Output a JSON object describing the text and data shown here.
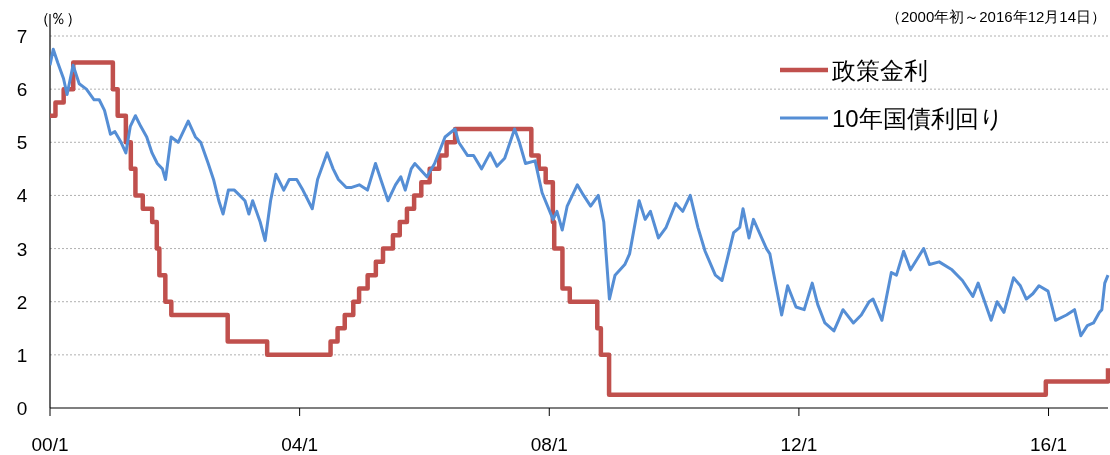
{
  "chart_data": {
    "type": "line",
    "ylabel": "（％）",
    "subtitle": "（2000年初～2016年12月14日）",
    "xlim": [
      "2000-01-01",
      "2016-12-14"
    ],
    "xticks": [
      {
        "value": "2000-01-01",
        "label": "00/1"
      },
      {
        "value": "2004-01-01",
        "label": "04/1"
      },
      {
        "value": "2008-01-01",
        "label": "08/1"
      },
      {
        "value": "2012-01-01",
        "label": "12/1"
      },
      {
        "value": "2016-01-01",
        "label": "16/1"
      }
    ],
    "ylim": [
      0,
      7
    ],
    "yticks": [
      0,
      1,
      2,
      3,
      4,
      5,
      6,
      7
    ],
    "grid": "y",
    "legend": "top right",
    "marker": "none",
    "line_style": "solid",
    "series": [
      {
        "name": "政策金利",
        "type": "step",
        "color": "#c0504d",
        "x": [
          "2000-01-01",
          "2000-02-02",
          "2000-03-21",
          "2000-05-16",
          "2001-01-03",
          "2001-01-31",
          "2001-03-20",
          "2001-04-18",
          "2001-05-15",
          "2001-06-27",
          "2001-08-21",
          "2001-09-17",
          "2001-10-02",
          "2001-11-06",
          "2001-12-11",
          "2002-11-06",
          "2003-06-25",
          "2004-06-30",
          "2004-08-10",
          "2004-09-21",
          "2004-11-10",
          "2004-12-14",
          "2005-02-02",
          "2005-03-22",
          "2005-05-03",
          "2005-06-30",
          "2005-08-09",
          "2005-09-20",
          "2005-11-01",
          "2005-12-13",
          "2006-01-31",
          "2006-03-28",
          "2006-05-10",
          "2006-06-29",
          "2007-09-18",
          "2007-10-31",
          "2007-12-11",
          "2008-01-22",
          "2008-01-30",
          "2008-03-18",
          "2008-04-30",
          "2008-10-08",
          "2008-10-29",
          "2008-12-16",
          "2015-12-16",
          "2016-12-14"
        ],
        "values": [
          5.5,
          5.75,
          6.0,
          6.5,
          6.0,
          5.5,
          5.0,
          4.5,
          4.0,
          3.75,
          3.5,
          3.0,
          2.5,
          2.0,
          1.75,
          1.25,
          1.0,
          1.25,
          1.5,
          1.75,
          2.0,
          2.25,
          2.5,
          2.75,
          3.0,
          3.25,
          3.5,
          3.75,
          4.0,
          4.25,
          4.5,
          4.75,
          5.0,
          5.25,
          4.75,
          4.5,
          4.25,
          3.5,
          3.0,
          2.25,
          2.0,
          1.5,
          1.0,
          0.25,
          0.5,
          0.75
        ]
      },
      {
        "name": "10年国債利回り",
        "color": "#558ed5",
        "x": [
          "2000-01-01",
          "2000-01-20",
          "2000-02-15",
          "2000-03-20",
          "2000-04-10",
          "2000-05-15",
          "2000-06-20",
          "2000-08-01",
          "2000-09-15",
          "2000-10-15",
          "2000-11-15",
          "2000-12-20",
          "2001-01-15",
          "2001-02-20",
          "2001-03-20",
          "2001-04-15",
          "2001-05-15",
          "2001-06-15",
          "2001-07-20",
          "2001-08-20",
          "2001-09-20",
          "2001-10-20",
          "2001-11-07",
          "2001-12-10",
          "2002-01-20",
          "2002-03-20",
          "2002-05-01",
          "2002-06-01",
          "2002-07-15",
          "2002-08-15",
          "2002-09-15",
          "2002-10-10",
          "2002-11-10",
          "2002-12-15",
          "2003-01-15",
          "2003-02-15",
          "2003-03-10",
          "2003-04-01",
          "2003-05-15",
          "2003-06-13",
          "2003-07-15",
          "2003-08-15",
          "2003-09-30",
          "2003-11-01",
          "2003-12-15",
          "2004-01-20",
          "2004-03-15",
          "2004-04-15",
          "2004-06-10",
          "2004-07-15",
          "2004-08-15",
          "2004-09-30",
          "2004-11-01",
          "2004-12-15",
          "2005-02-01",
          "2005-03-20",
          "2005-04-20",
          "2005-06-01",
          "2005-07-15",
          "2005-08-15",
          "2005-09-10",
          "2005-10-15",
          "2005-11-05",
          "2006-01-15",
          "2006-03-01",
          "2006-05-01",
          "2006-06-28",
          "2006-07-20",
          "2006-09-10",
          "2006-10-15",
          "2006-12-01",
          "2007-01-20",
          "2007-03-01",
          "2007-04-15",
          "2007-06-12",
          "2007-07-10",
          "2007-08-15",
          "2007-10-10",
          "2007-11-20",
          "2008-01-23",
          "2008-02-15",
          "2008-03-17",
          "2008-04-15",
          "2008-06-13",
          "2008-07-20",
          "2008-08-30",
          "2008-10-14",
          "2008-11-15",
          "2008-12-18",
          "2009-01-20",
          "2009-03-18",
          "2009-04-15",
          "2009-06-10",
          "2009-07-15",
          "2009-08-15",
          "2009-10-01",
          "2009-11-15",
          "2010-01-10",
          "2010-02-20",
          "2010-04-05",
          "2010-05-20",
          "2010-07-01",
          "2010-08-30",
          "2010-10-08",
          "2010-11-15",
          "2010-12-15",
          "2011-01-20",
          "2011-02-08",
          "2011-03-15",
          "2011-04-10",
          "2011-06-25",
          "2011-07-15",
          "2011-08-20",
          "2011-09-22",
          "2011-10-27",
          "2011-12-15",
          "2012-02-01",
          "2012-03-19",
          "2012-04-20",
          "2012-06-01",
          "2012-07-24",
          "2012-08-20",
          "2012-09-15",
          "2012-11-15",
          "2012-12-31",
          "2013-02-15",
          "2013-03-10",
          "2013-05-01",
          "2013-06-25",
          "2013-07-25",
          "2013-09-05",
          "2013-10-15",
          "2013-12-31",
          "2014-02-03",
          "2014-04-01",
          "2014-06-15",
          "2014-08-15",
          "2014-10-15",
          "2014-11-15",
          "2015-01-30",
          "2015-03-06",
          "2015-04-15",
          "2015-06-10",
          "2015-07-20",
          "2015-08-24",
          "2015-10-01",
          "2015-11-06",
          "2015-12-29",
          "2016-02-11",
          "2016-04-15",
          "2016-06-01",
          "2016-07-08",
          "2016-08-15",
          "2016-09-20",
          "2016-10-25",
          "2016-11-08",
          "2016-11-25",
          "2016-12-14"
        ],
        "values": [
          6.45,
          6.75,
          6.5,
          6.2,
          5.9,
          6.45,
          6.1,
          6.0,
          5.8,
          5.8,
          5.6,
          5.15,
          5.2,
          5.0,
          4.8,
          5.3,
          5.5,
          5.3,
          5.1,
          4.8,
          4.6,
          4.5,
          4.3,
          5.1,
          5.0,
          5.4,
          5.1,
          5.0,
          4.6,
          4.3,
          3.9,
          3.65,
          4.1,
          4.1,
          4.0,
          3.9,
          3.65,
          3.9,
          3.5,
          3.15,
          3.9,
          4.4,
          4.1,
          4.3,
          4.3,
          4.1,
          3.75,
          4.3,
          4.8,
          4.5,
          4.3,
          4.15,
          4.15,
          4.2,
          4.1,
          4.6,
          4.3,
          3.9,
          4.2,
          4.35,
          4.1,
          4.5,
          4.6,
          4.35,
          4.6,
          5.1,
          5.25,
          5.0,
          4.75,
          4.75,
          4.5,
          4.8,
          4.55,
          4.7,
          5.25,
          5.0,
          4.6,
          4.65,
          4.05,
          3.55,
          3.7,
          3.35,
          3.8,
          4.2,
          4.0,
          3.8,
          4.0,
          3.5,
          2.05,
          2.5,
          2.7,
          2.9,
          3.9,
          3.55,
          3.7,
          3.2,
          3.4,
          3.85,
          3.7,
          4.0,
          3.4,
          2.95,
          2.5,
          2.4,
          2.9,
          3.3,
          3.4,
          3.75,
          3.2,
          3.55,
          3.0,
          2.9,
          2.3,
          1.75,
          2.3,
          1.9,
          1.85,
          2.35,
          1.95,
          1.6,
          1.45,
          1.65,
          1.85,
          1.6,
          1.75,
          2.0,
          2.05,
          1.65,
          2.55,
          2.5,
          2.95,
          2.6,
          3.0,
          2.7,
          2.75,
          2.6,
          2.4,
          2.1,
          2.35,
          1.65,
          2.0,
          1.8,
          2.45,
          2.3,
          2.05,
          2.15,
          2.3,
          2.2,
          1.65,
          1.75,
          1.85,
          1.36,
          1.55,
          1.6,
          1.8,
          1.85,
          2.35,
          2.5
        ]
      }
    ]
  }
}
